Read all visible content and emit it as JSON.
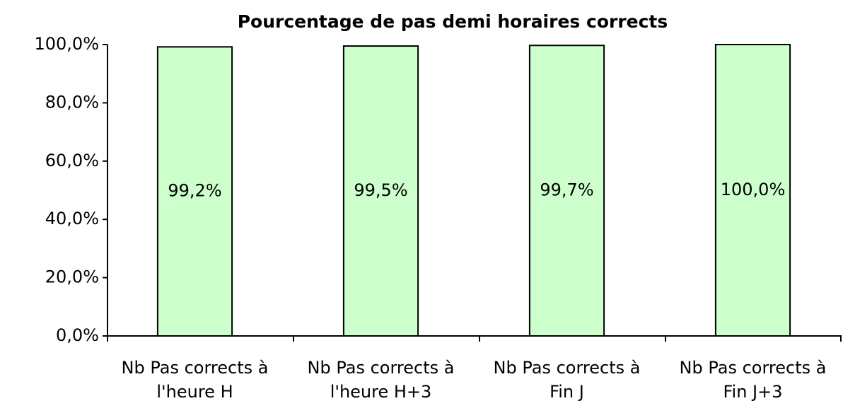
{
  "chart_data": {
    "type": "bar",
    "title": "Pourcentage de pas demi horaires corrects",
    "categories": [
      [
        "Nb Pas corrects à",
        "l'heure H"
      ],
      [
        "Nb Pas corrects à",
        "l'heure H+3"
      ],
      [
        "Nb Pas corrects à",
        "Fin J"
      ],
      [
        "Nb Pas corrects à",
        "Fin J+3"
      ]
    ],
    "values": [
      99.2,
      99.5,
      99.7,
      100.0
    ],
    "value_labels": [
      "99,2%",
      "99,5%",
      "99,7%",
      "100,0%"
    ],
    "color": "#ccffcc",
    "ylim": [
      0,
      100
    ],
    "yticks": [
      {
        "value": 0,
        "label": "0,0%"
      },
      {
        "value": 20,
        "label": "20,0%"
      },
      {
        "value": 40,
        "label": "40,0%"
      },
      {
        "value": 60,
        "label": "60,0%"
      },
      {
        "value": 80,
        "label": "80,0%"
      },
      {
        "value": 100,
        "label": "100,0%"
      }
    ],
    "grid": false
  }
}
